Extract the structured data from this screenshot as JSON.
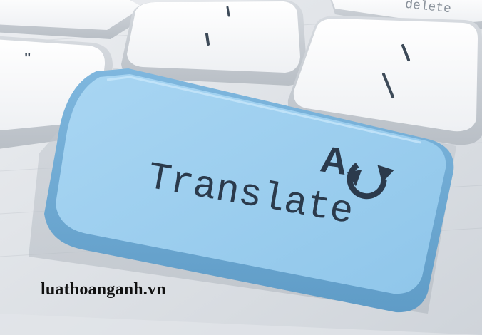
{
  "keys": {
    "main_label": "Translate",
    "delete_label": "delete",
    "icon_letter": "A"
  },
  "icons": {
    "main_key_icon": "translate-icon"
  },
  "colors": {
    "key_blue": "#9fd0f0",
    "key_white": "#f4f5f7",
    "label_dark": "#2b3a4c"
  },
  "watermark": "luathoanganh.vn"
}
